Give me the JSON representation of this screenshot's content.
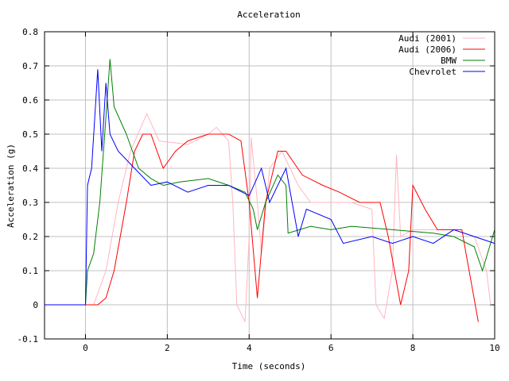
{
  "chart_data": {
    "type": "line",
    "title": "Acceleration",
    "xlabel": "Time (seconds)",
    "ylabel": "Acceleration (g)",
    "xlim": [
      -1,
      10
    ],
    "ylim": [
      -0.1,
      0.8
    ],
    "xticks": [
      0,
      2,
      4,
      6,
      8,
      10
    ],
    "yticks": [
      -0.1,
      0,
      0.1,
      0.2,
      0.3,
      0.4,
      0.5,
      0.6,
      0.7,
      0.8
    ],
    "ytick_labels": [
      "-0.1",
      "0",
      "0.1",
      "0.2",
      "0.3",
      "0.4",
      "0.5",
      "0.6",
      "0.7",
      "0.8"
    ],
    "grid": true,
    "legend_position": "top-right",
    "series": [
      {
        "name": "Audi (2001)",
        "color": "#ffb6c1",
        "points": [
          [
            -1,
            0
          ],
          [
            0.2,
            0
          ],
          [
            0.5,
            0.1
          ],
          [
            0.8,
            0.3
          ],
          [
            1.1,
            0.45
          ],
          [
            1.5,
            0.56
          ],
          [
            1.8,
            0.48
          ],
          [
            2.5,
            0.47
          ],
          [
            3,
            0.5
          ],
          [
            3.2,
            0.52
          ],
          [
            3.5,
            0.48
          ],
          [
            3.6,
            0.3
          ],
          [
            3.7,
            0
          ],
          [
            3.9,
            -0.05
          ],
          [
            4.0,
            0.2
          ],
          [
            4.05,
            0.49
          ],
          [
            4.2,
            0.3
          ],
          [
            4.3,
            0.15
          ],
          [
            4.5,
            0.4
          ],
          [
            4.8,
            0.45
          ],
          [
            5.2,
            0.35
          ],
          [
            5.5,
            0.3
          ],
          [
            6,
            0.3
          ],
          [
            6.5,
            0.3
          ],
          [
            7,
            0.28
          ],
          [
            7.1,
            0
          ],
          [
            7.3,
            -0.04
          ],
          [
            7.5,
            0.1
          ],
          [
            7.6,
            0.44
          ],
          [
            7.7,
            0.2
          ],
          [
            8,
            0.22
          ],
          [
            9,
            0.22
          ],
          [
            9.5,
            0.2
          ],
          [
            9.8,
            0.1
          ],
          [
            9.9,
            0
          ]
        ]
      },
      {
        "name": "Audi (2006)",
        "color": "#ff0000",
        "points": [
          [
            -1,
            0
          ],
          [
            0.3,
            0
          ],
          [
            0.5,
            0.02
          ],
          [
            0.7,
            0.1
          ],
          [
            1.0,
            0.3
          ],
          [
            1.2,
            0.45
          ],
          [
            1.4,
            0.5
          ],
          [
            1.6,
            0.5
          ],
          [
            1.9,
            0.4
          ],
          [
            2.2,
            0.45
          ],
          [
            2.5,
            0.48
          ],
          [
            3,
            0.5
          ],
          [
            3.5,
            0.5
          ],
          [
            3.8,
            0.48
          ],
          [
            4.0,
            0.3
          ],
          [
            4.2,
            0.02
          ],
          [
            4.4,
            0.3
          ],
          [
            4.7,
            0.45
          ],
          [
            4.9,
            0.45
          ],
          [
            5.3,
            0.38
          ],
          [
            5.8,
            0.35
          ],
          [
            6.2,
            0.33
          ],
          [
            6.7,
            0.3
          ],
          [
            7.2,
            0.3
          ],
          [
            7.4,
            0.2
          ],
          [
            7.7,
            0
          ],
          [
            7.9,
            0.1
          ],
          [
            8,
            0.35
          ],
          [
            8.3,
            0.28
          ],
          [
            8.6,
            0.22
          ],
          [
            9,
            0.22
          ],
          [
            9.2,
            0.22
          ],
          [
            9.3,
            0.15
          ],
          [
            9.45,
            0.05
          ],
          [
            9.6,
            -0.05
          ]
        ]
      },
      {
        "name": "BMW",
        "color": "#008000",
        "points": [
          [
            -1,
            0
          ],
          [
            0,
            0
          ],
          [
            0.05,
            0.1
          ],
          [
            0.2,
            0.15
          ],
          [
            0.35,
            0.3
          ],
          [
            0.5,
            0.55
          ],
          [
            0.6,
            0.72
          ],
          [
            0.7,
            0.58
          ],
          [
            1.0,
            0.5
          ],
          [
            1.3,
            0.4
          ],
          [
            1.6,
            0.37
          ],
          [
            1.9,
            0.35
          ],
          [
            2.3,
            0.36
          ],
          [
            3,
            0.37
          ],
          [
            3.5,
            0.35
          ],
          [
            3.9,
            0.33
          ],
          [
            4.1,
            0.28
          ],
          [
            4.2,
            0.22
          ],
          [
            4.4,
            0.3
          ],
          [
            4.7,
            0.38
          ],
          [
            4.9,
            0.35
          ],
          [
            4.95,
            0.21
          ],
          [
            5.5,
            0.23
          ],
          [
            6,
            0.22
          ],
          [
            6.5,
            0.23
          ],
          [
            7.5,
            0.22
          ],
          [
            8.5,
            0.21
          ],
          [
            9,
            0.2
          ],
          [
            9.5,
            0.17
          ],
          [
            9.7,
            0.1
          ],
          [
            10,
            0.22
          ]
        ]
      },
      {
        "name": "Chevrolet",
        "color": "#0000ff",
        "points": [
          [
            -1,
            0
          ],
          [
            0,
            0
          ],
          [
            0.05,
            0.35
          ],
          [
            0.15,
            0.4
          ],
          [
            0.3,
            0.69
          ],
          [
            0.4,
            0.45
          ],
          [
            0.5,
            0.65
          ],
          [
            0.6,
            0.5
          ],
          [
            0.8,
            0.45
          ],
          [
            1.2,
            0.4
          ],
          [
            1.6,
            0.35
          ],
          [
            2,
            0.36
          ],
          [
            2.5,
            0.33
          ],
          [
            3,
            0.35
          ],
          [
            3.5,
            0.35
          ],
          [
            4,
            0.32
          ],
          [
            4.3,
            0.4
          ],
          [
            4.5,
            0.3
          ],
          [
            4.9,
            0.4
          ],
          [
            5.2,
            0.2
          ],
          [
            5.4,
            0.28
          ],
          [
            6,
            0.25
          ],
          [
            6.3,
            0.18
          ],
          [
            7,
            0.2
          ],
          [
            7.5,
            0.18
          ],
          [
            8,
            0.2
          ],
          [
            8.5,
            0.18
          ],
          [
            9,
            0.22
          ],
          [
            9.5,
            0.2
          ],
          [
            10,
            0.18
          ]
        ]
      }
    ]
  }
}
